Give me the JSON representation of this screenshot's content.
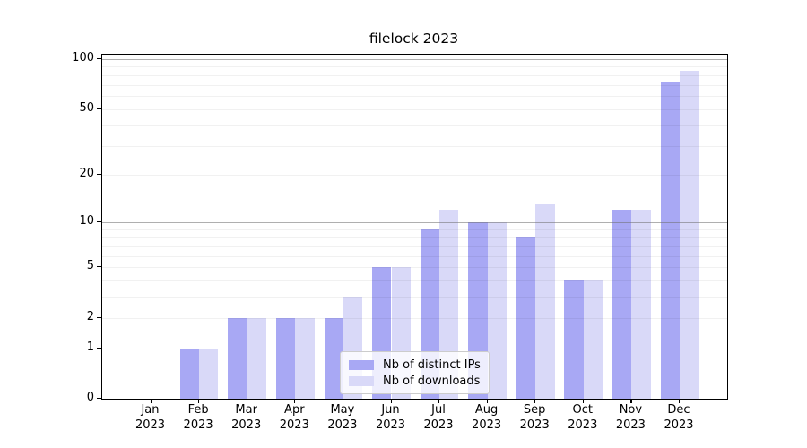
{
  "chart_data": {
    "type": "bar",
    "title": "filelock 2023",
    "categories": [
      "Jan",
      "Feb",
      "Mar",
      "Apr",
      "May",
      "Jun",
      "Jul",
      "Aug",
      "Sep",
      "Oct",
      "Nov",
      "Dec"
    ],
    "year": "2023",
    "series": [
      {
        "name": "Nb of distinct IPs",
        "color": "#a8a8f4",
        "values": [
          0,
          1,
          2,
          2,
          2,
          5,
          9,
          10,
          8,
          4,
          12,
          72
        ]
      },
      {
        "name": "Nb of downloads",
        "color": "#d9d9f8",
        "values": [
          0,
          1,
          2,
          2,
          3,
          5,
          12,
          10,
          13,
          4,
          12,
          85
        ]
      }
    ],
    "yscale": "log1p",
    "ylim": [
      0,
      100
    ],
    "yticks": [
      100,
      50,
      20,
      10,
      5,
      2,
      1,
      0
    ],
    "y_gridlines_major": [
      100,
      10
    ],
    "y_gridlines_minor": [
      90,
      80,
      70,
      60,
      50,
      40,
      30,
      20,
      9,
      8,
      7,
      6,
      5,
      4,
      3,
      2,
      1
    ],
    "grid": true,
    "legend_position": "lower center",
    "xlabel": "",
    "ylabel": ""
  },
  "colors": {
    "bar_dark": "#a8a8f4",
    "bar_light": "#d9d9f8",
    "axis": "#000000",
    "grid_major": "#9e9e9e",
    "grid_minor": "#f1f1f1",
    "legend_border": "#cccccc"
  }
}
